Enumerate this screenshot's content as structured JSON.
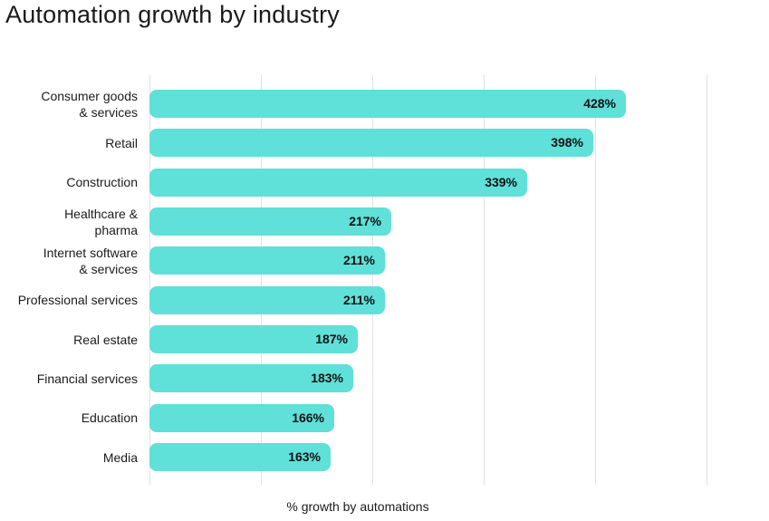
{
  "title": "Automation growth by industry",
  "colors": {
    "bar_fill": "#5fe0d8",
    "gridline": "#e1e1e1",
    "text": "#1b1b1b",
    "value_text": "#111111",
    "background": "#ffffff"
  },
  "chart_data": {
    "type": "bar",
    "orientation": "horizontal",
    "title": "Automation growth by industry",
    "xlabel": "% growth by automations",
    "ylabel": "",
    "unit": "%",
    "xlim": [
      0,
      500
    ],
    "gridlines": [
      0,
      100,
      200,
      300,
      400,
      500
    ],
    "grid": "vertical-only, unlabeled ticks",
    "legend": false,
    "value_labels_position": "inside-bar-right",
    "categories": [
      "Consumer goods & services",
      "Retail",
      "Construction",
      "Healthcare & pharma",
      "Internet software & services",
      "Professional services",
      "Real estate",
      "Financial services",
      "Education",
      "Media"
    ],
    "display_labels": [
      "Consumer goods\n& services",
      "Retail",
      "Construction",
      "Healthcare &\npharma",
      "Internet software\n& services",
      "Professional services",
      "Real estate",
      "Financial services",
      "Education",
      "Media"
    ],
    "values": [
      428,
      398,
      339,
      217,
      211,
      211,
      187,
      183,
      166,
      163
    ],
    "value_labels": [
      "428%",
      "398%",
      "339%",
      "217%",
      "211%",
      "211%",
      "187%",
      "183%",
      "166%",
      "163%"
    ]
  }
}
